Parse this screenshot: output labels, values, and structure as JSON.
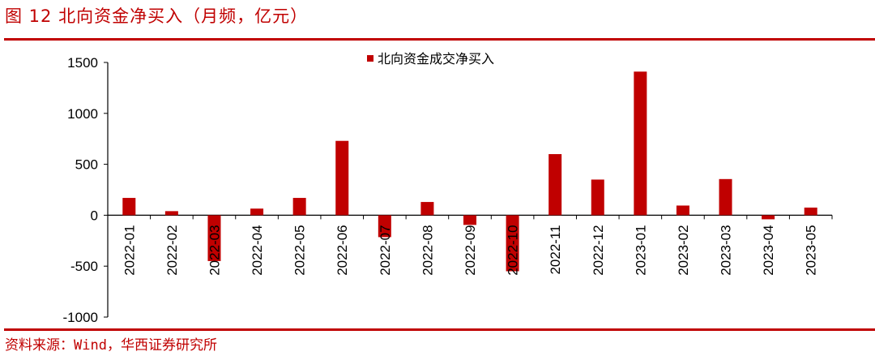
{
  "figure": {
    "title": "图 12  北向资金净买入（月频，亿元）",
    "source": "资料来源：Wind，华西证券研究所",
    "accent_color": "#c00000"
  },
  "chart_data": {
    "type": "bar",
    "title": "",
    "xlabel": "",
    "ylabel": "",
    "ylim": [
      -1000,
      1500
    ],
    "yticks": [
      -1000,
      -500,
      0,
      500,
      1000,
      1500
    ],
    "categories": [
      "2022-01",
      "2022-02",
      "2022-03",
      "2022-04",
      "2022-05",
      "2022-06",
      "2022-07",
      "2022-08",
      "2022-09",
      "2022-10",
      "2022-11",
      "2022-12",
      "2023-01",
      "2023-02",
      "2023-03",
      "2023-04",
      "2023-05"
    ],
    "series": [
      {
        "name": "北向资金成交净买入",
        "color": "#c00000",
        "values": [
          170,
          40,
          -450,
          65,
          170,
          730,
          -215,
          130,
          -95,
          -550,
          600,
          350,
          1410,
          95,
          355,
          -40,
          75
        ]
      }
    ],
    "legend": "top-center",
    "grid": false
  }
}
